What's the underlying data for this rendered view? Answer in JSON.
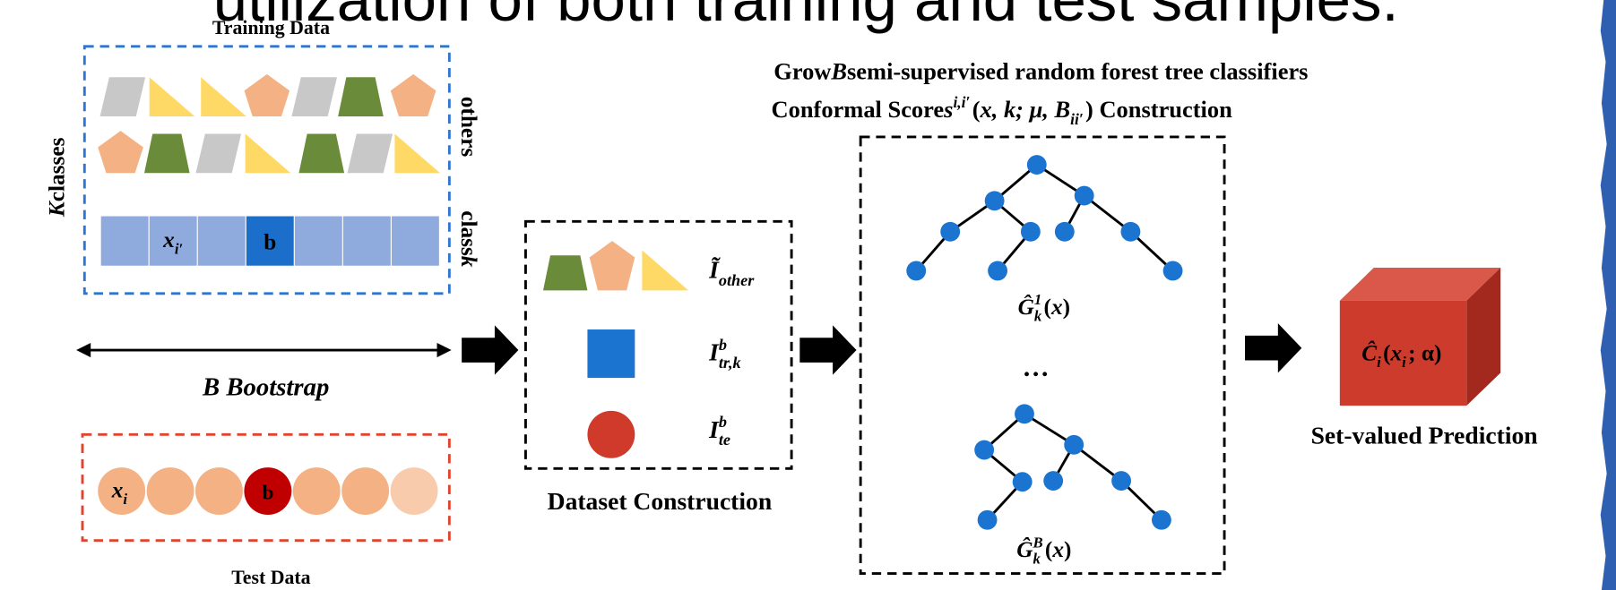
{
  "title": "utilization of both training and test samples.",
  "training": {
    "title": "Training Data",
    "k_classes": [
      {
        "text": "K",
        "em": true
      },
      {
        "text": " classes"
      }
    ],
    "others": [
      {
        "text": "others"
      }
    ],
    "class_k": [
      {
        "text": "class "
      },
      {
        "text": "k",
        "em": true
      }
    ],
    "cell_label": [
      {
        "text": "x",
        "em": true
      },
      {
        "sub": "i′"
      }
    ],
    "b": "b"
  },
  "bootstrap": [
    {
      "text": "B Bootstrap",
      "em": true
    }
  ],
  "test": {
    "title": "Test Data",
    "point_label": [
      {
        "text": "x",
        "em": true
      },
      {
        "sub": "i"
      }
    ],
    "b": "b"
  },
  "dataset": {
    "title": "Dataset Construction",
    "items": [
      [
        {
          "text": "Ĩ",
          "em": true
        },
        {
          "sub": "other"
        }
      ],
      [
        {
          "text": "I",
          "em": true
        },
        {
          "sup": "b",
          "sub": "tr,k"
        }
      ],
      [
        {
          "text": "I",
          "em": true
        },
        {
          "sup": "b",
          "sub": "te"
        }
      ]
    ]
  },
  "forest": {
    "line1": [
      {
        "text": "Grow "
      },
      {
        "text": "B",
        "em": true
      },
      {
        "text": " semi-supervised random forest tree classifiers"
      }
    ],
    "line2": [
      {
        "text": "Conformal Score "
      },
      {
        "text": "s",
        "em": true
      },
      {
        "sup": "i,i′"
      },
      {
        "text": "("
      },
      {
        "text": "x, k; μ, B",
        "em": true
      },
      {
        "sub": "ii′"
      },
      {
        "text": ") Construction"
      }
    ],
    "tree_labels": [
      [
        {
          "text": "Ĝ",
          "em": true
        },
        {
          "sup": "1",
          "sub": "k"
        },
        {
          "text": "("
        },
        {
          "text": "x",
          "em": true
        },
        {
          "text": ")"
        }
      ],
      [
        {
          "text": "Ĝ",
          "em": true
        },
        {
          "sup": "B",
          "sub": "k"
        },
        {
          "text": "("
        },
        {
          "text": "x",
          "em": true
        },
        {
          "text": ")"
        }
      ]
    ],
    "ellipsis": "…"
  },
  "prediction": {
    "label": [
      {
        "text": "Ĉ",
        "em": true
      },
      {
        "sub": "i"
      },
      {
        "text": "("
      },
      {
        "text": "x",
        "em": true
      },
      {
        "sub": "i"
      },
      {
        "text": "; α)"
      }
    ],
    "title": "Set-valued Prediction"
  }
}
